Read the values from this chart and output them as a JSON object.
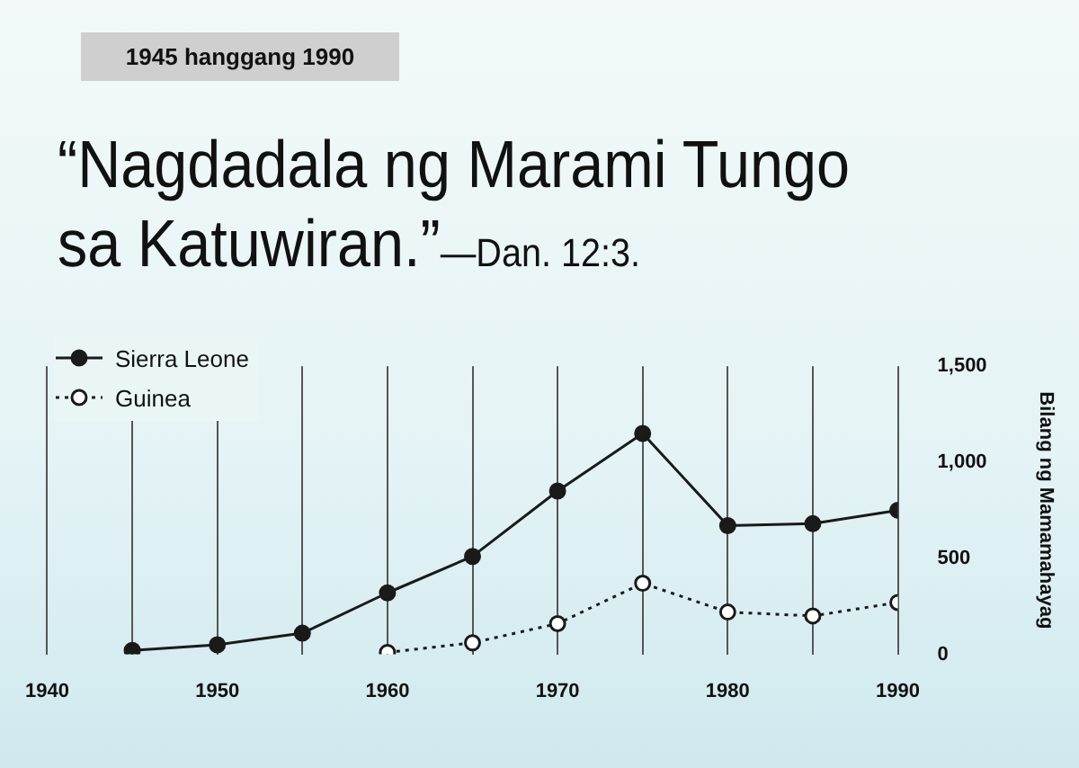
{
  "chart_data": {
    "type": "line",
    "subtitle": "1945 hanggang 1990",
    "title": "“Nagdadala ng Marami Tungo sa Katuwiran.”",
    "annotations": [
      "—Dan. 12:3."
    ],
    "ylabel": "Bilang ng Mamamahayag",
    "x": [
      1945,
      1950,
      1955,
      1960,
      1965,
      1970,
      1975,
      1980,
      1985,
      1990
    ],
    "series": [
      {
        "name": "Sierra Leone",
        "color": "#1a1a1a",
        "marker": "circle",
        "line_style": "solid",
        "values": [
          20,
          50,
          110,
          320,
          510,
          850,
          1150,
          670,
          680,
          750
        ]
      },
      {
        "name": "Guinea",
        "color": "#1a1a1a",
        "marker": "circle",
        "line_style": "dotted",
        "values": [
          null,
          null,
          null,
          10,
          60,
          160,
          370,
          220,
          200,
          270
        ]
      }
    ],
    "xlim": [
      1940,
      1990
    ],
    "xticks": [
      1940,
      {
        "value": 1945,
        "label": null
      },
      1950,
      {
        "value": 1955,
        "label": null
      },
      1960,
      {
        "value": 1965,
        "label": null
      },
      1970,
      {
        "value": 1975,
        "label": null
      },
      1980,
      {
        "value": 1985,
        "label": null
      },
      1990
    ],
    "ylim": [
      0,
      1500
    ],
    "yticks": [
      0,
      500,
      {
        "value": 1000,
        "label": "1,000"
      },
      {
        "value": 1500,
        "label": "1,500"
      }
    ],
    "grid": "x",
    "legend": "top left"
  }
}
